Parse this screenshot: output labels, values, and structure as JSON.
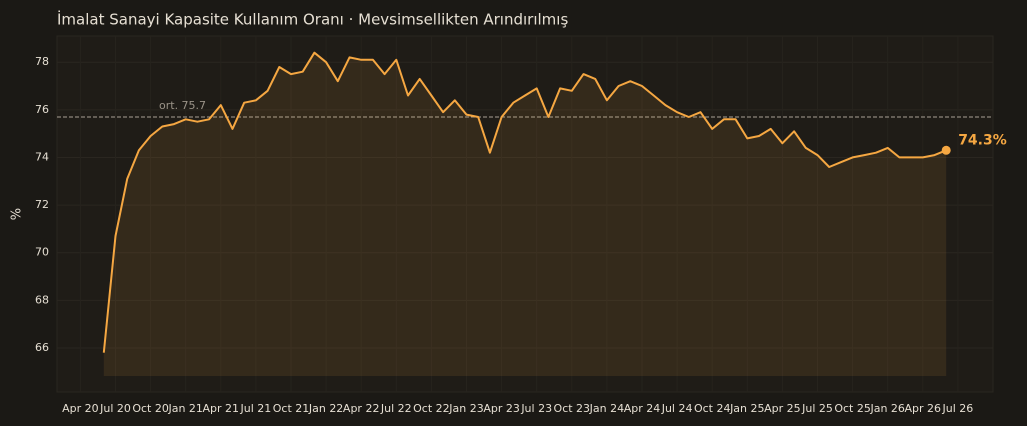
{
  "chart_data": {
    "type": "line",
    "title": "İmalat Sanayi Kapasite Kullanım Oranı · Mevsimsellikten Arındırılmış",
    "y_label": "%",
    "x": [
      "2020-06",
      "2020-07",
      "2020-08",
      "2020-09",
      "2020-10",
      "2020-11",
      "2020-12",
      "2021-01",
      "2021-02",
      "2021-03",
      "2021-04",
      "2021-05",
      "2021-06",
      "2021-07",
      "2021-08",
      "2021-09",
      "2021-10",
      "2021-11",
      "2021-12",
      "2022-01",
      "2022-02",
      "2022-03",
      "2022-04",
      "2022-05",
      "2022-06",
      "2022-07",
      "2022-08",
      "2022-09",
      "2022-10",
      "2022-11",
      "2022-12",
      "2023-01",
      "2023-02",
      "2023-03",
      "2023-04",
      "2023-05",
      "2023-06",
      "2023-07",
      "2023-08",
      "2023-09",
      "2023-10",
      "2023-11",
      "2023-12",
      "2024-01",
      "2024-02",
      "2024-03",
      "2024-04",
      "2024-05",
      "2024-06",
      "2024-07",
      "2024-08",
      "2024-09",
      "2024-10",
      "2024-11",
      "2024-12",
      "2025-01",
      "2025-02",
      "2025-03",
      "2025-04",
      "2025-05",
      "2025-06",
      "2025-07",
      "2025-08",
      "2025-09",
      "2025-10",
      "2025-11",
      "2025-12",
      "2026-01",
      "2026-02",
      "2026-03",
      "2026-04",
      "2026-05",
      "2026-06"
    ],
    "series": [
      {
        "name": "Kapasite Kullanım Oranı",
        "color": "#f5a742",
        "values": [
          65.8,
          70.7,
          73.1,
          74.3,
          74.9,
          75.3,
          75.4,
          75.6,
          75.5,
          75.6,
          76.2,
          75.2,
          76.3,
          76.4,
          76.8,
          77.8,
          77.5,
          77.6,
          78.4,
          78.0,
          77.2,
          78.2,
          78.1,
          78.1,
          77.5,
          78.1,
          76.6,
          77.3,
          76.6,
          75.9,
          76.4,
          75.8,
          75.7,
          74.2,
          75.7,
          76.3,
          76.6,
          76.9,
          75.7,
          76.9,
          76.8,
          77.5,
          77.3,
          76.4,
          77.0,
          77.2,
          77.0,
          76.6,
          76.2,
          75.9,
          75.7,
          75.9,
          75.2,
          75.6,
          75.6,
          74.8,
          74.9,
          75.2,
          74.6,
          75.1,
          74.4,
          74.1,
          73.6,
          73.8,
          74.0,
          74.1,
          74.2,
          74.4,
          74.0,
          74.0,
          74.0,
          74.1,
          74.3
        ]
      }
    ],
    "mean_line": {
      "value": 75.7,
      "label": "ort. 75.7"
    },
    "end_label": "74.3%",
    "xlim": [
      "2020-02",
      "2026-10"
    ],
    "xticks": [
      {
        "value": "2020-04",
        "label": "Apr 20"
      },
      {
        "value": "2020-07",
        "label": "Jul 20"
      },
      {
        "value": "2020-10",
        "label": "Oct 20"
      },
      {
        "value": "2021-01",
        "label": "Jan 21"
      },
      {
        "value": "2021-04",
        "label": "Apr 21"
      },
      {
        "value": "2021-07",
        "label": "Jul 21"
      },
      {
        "value": "2021-10",
        "label": "Oct 21"
      },
      {
        "value": "2022-01",
        "label": "Jan 22"
      },
      {
        "value": "2022-04",
        "label": "Apr 22"
      },
      {
        "value": "2022-07",
        "label": "Jul 22"
      },
      {
        "value": "2022-10",
        "label": "Oct 22"
      },
      {
        "value": "2023-01",
        "label": "Jan 23"
      },
      {
        "value": "2023-04",
        "label": "Apr 23"
      },
      {
        "value": "2023-07",
        "label": "Jul 23"
      },
      {
        "value": "2023-10",
        "label": "Oct 23"
      },
      {
        "value": "2024-01",
        "label": "Jan 24"
      },
      {
        "value": "2024-04",
        "label": "Apr 24"
      },
      {
        "value": "2024-07",
        "label": "Jul 24"
      },
      {
        "value": "2024-10",
        "label": "Oct 24"
      },
      {
        "value": "2025-01",
        "label": "Jan 25"
      },
      {
        "value": "2025-04",
        "label": "Apr 25"
      },
      {
        "value": "2025-07",
        "label": "Jul 25"
      },
      {
        "value": "2025-10",
        "label": "Oct 25"
      },
      {
        "value": "2026-01",
        "label": "Jan 26"
      },
      {
        "value": "2026-04",
        "label": "Apr 26"
      },
      {
        "value": "2026-07",
        "label": "Jul 26"
      }
    ],
    "ylim": [
      64.15,
      79.1
    ],
    "yticks": [
      66,
      68,
      70,
      72,
      74,
      76,
      78
    ],
    "grid": true
  }
}
